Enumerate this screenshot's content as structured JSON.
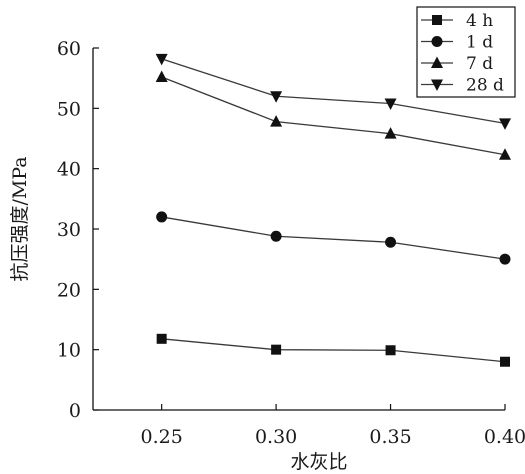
{
  "chart_data": {
    "type": "line",
    "title": "",
    "xlabel": "水灰比",
    "ylabel": "抗压强度/MPa",
    "x": [
      0.25,
      0.3,
      0.35,
      0.4
    ],
    "x_tick_labels": [
      "0.25",
      "0.30",
      "0.35",
      "0.40"
    ],
    "xlim": [
      0.22,
      0.4
    ],
    "ylim": [
      0,
      60
    ],
    "y_ticks": [
      0,
      10,
      20,
      30,
      40,
      50,
      60
    ],
    "y_tick_labels": [
      "0",
      "10",
      "20",
      "30",
      "40",
      "50",
      "60"
    ],
    "grid": false,
    "legend_position": "top-right",
    "series": [
      {
        "name": "4 h",
        "marker": "square",
        "values": [
          11.8,
          10.0,
          9.9,
          8.0
        ]
      },
      {
        "name": "1 d",
        "marker": "circle",
        "values": [
          32.0,
          28.8,
          27.8,
          25.0
        ]
      },
      {
        "name": "7 d",
        "marker": "triangle-up",
        "values": [
          55.2,
          47.8,
          45.8,
          42.3
        ]
      },
      {
        "name": "28 d",
        "marker": "triangle-down",
        "values": [
          58.2,
          52.0,
          50.8,
          47.5
        ]
      }
    ],
    "colors": {
      "line": "#3a3a3a",
      "marker": "#111111",
      "axis": "#111111"
    }
  }
}
